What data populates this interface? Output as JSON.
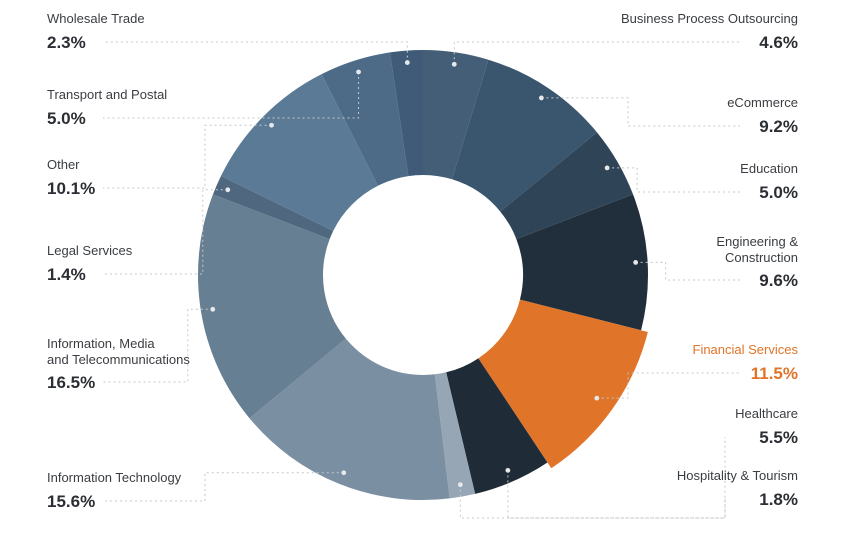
{
  "chart_data": {
    "type": "pie",
    "variant": "donut",
    "highlight": "Financial Services",
    "highlight_color": "#e07428",
    "slices": [
      {
        "label": "Business Process Outsourcing",
        "display": "4.6%",
        "value": 4.6,
        "color": "#445e78"
      },
      {
        "label": "eCommerce",
        "display": "9.2%",
        "value": 9.2,
        "color": "#3a556e"
      },
      {
        "label": "Education",
        "display": "5.0%",
        "value": 5.0,
        "color": "#2f4557"
      },
      {
        "label": "Engineering & Construction",
        "display": "9.6%",
        "value": 9.6,
        "color": "#212e3b"
      },
      {
        "label": "Financial Services",
        "display": "11.5%",
        "value": 11.5,
        "color": "#e07428"
      },
      {
        "label": "Healthcare",
        "display": "5.5%",
        "value": 5.5,
        "color": "#1f2b36"
      },
      {
        "label": "Hospitality & Tourism",
        "display": "1.8%",
        "value": 1.8,
        "color": "#96a6b4"
      },
      {
        "label": "Information Technology",
        "display": "15.6%",
        "value": 15.6,
        "color": "#7a8fa2"
      },
      {
        "label": "Information, Media and Telecommunications",
        "display": "16.5%",
        "value": 16.5,
        "color": "#677f92"
      },
      {
        "label": "Legal Services",
        "display": "1.4%",
        "value": 1.4,
        "color": "#4f6880"
      },
      {
        "label": "Other",
        "display": "10.1%",
        "value": 10.1,
        "color": "#5a7a95"
      },
      {
        "label": "Transport and Postal",
        "display": "5.0%",
        "value": 5.0,
        "color": "#4d6a86"
      },
      {
        "label": "Wholesale Trade",
        "display": "2.3%",
        "value": 2.3,
        "color": "#3f5b78"
      }
    ]
  }
}
